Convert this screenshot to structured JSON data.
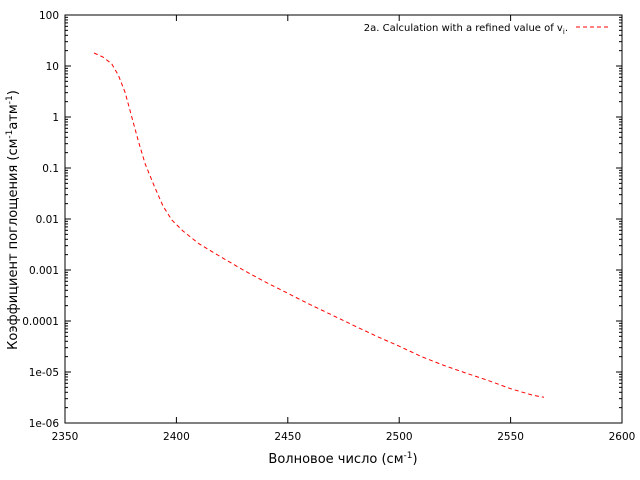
{
  "chart_data": {
    "type": "line",
    "title": "",
    "xlabel": "Волновое число (см",
    "xlabel_sup": "-1",
    "xlabel_end": ")",
    "ylabel": "Коэффициент поглощения (см",
    "ylabel_sup1": "-1",
    "ylabel_mid": "атм",
    "ylabel_sup2": "-1",
    "ylabel_end": ")",
    "xlim": [
      2350,
      2600
    ],
    "ylim": [
      1e-06,
      100
    ],
    "yscale": "log",
    "grid": false,
    "legend_position": "top-right",
    "x_ticks": [
      2350,
      2400,
      2450,
      2500,
      2550,
      2600
    ],
    "x_tick_labels": [
      "2350",
      "2400",
      "2450",
      "2500",
      "2550",
      "2600"
    ],
    "y_ticks": [
      1e-06,
      1e-05,
      0.0001,
      0.001,
      0.01,
      0.1,
      1,
      10,
      100
    ],
    "y_tick_labels": [
      "1e-06",
      "1e-05",
      "0.0001",
      "0.001",
      "0.01",
      "0.1",
      "1",
      "10",
      "100"
    ],
    "series": [
      {
        "name": "2a. Calculation with a refined value of v",
        "name_sub": "i",
        "name_end": ".",
        "color": "#ff0000",
        "style": "dashed",
        "x": [
          2363,
          2367,
          2371,
          2374,
          2377,
          2380,
          2383,
          2386,
          2390,
          2394,
          2398,
          2403,
          2410,
          2420,
          2430,
          2440,
          2450,
          2460,
          2470,
          2480,
          2490,
          2500,
          2510,
          2520,
          2530,
          2540,
          2550,
          2560,
          2565
        ],
        "y": [
          18,
          15,
          11,
          6.5,
          3,
          1,
          0.33,
          0.12,
          0.045,
          0.018,
          0.0095,
          0.0058,
          0.0033,
          0.0018,
          0.001,
          0.00058,
          0.00035,
          0.00021,
          0.00013,
          8e-05,
          5e-05,
          3.2e-05,
          2e-05,
          1.35e-05,
          9.5e-06,
          6.8e-06,
          4.7e-06,
          3.5e-06,
          3.2e-06
        ]
      }
    ]
  }
}
